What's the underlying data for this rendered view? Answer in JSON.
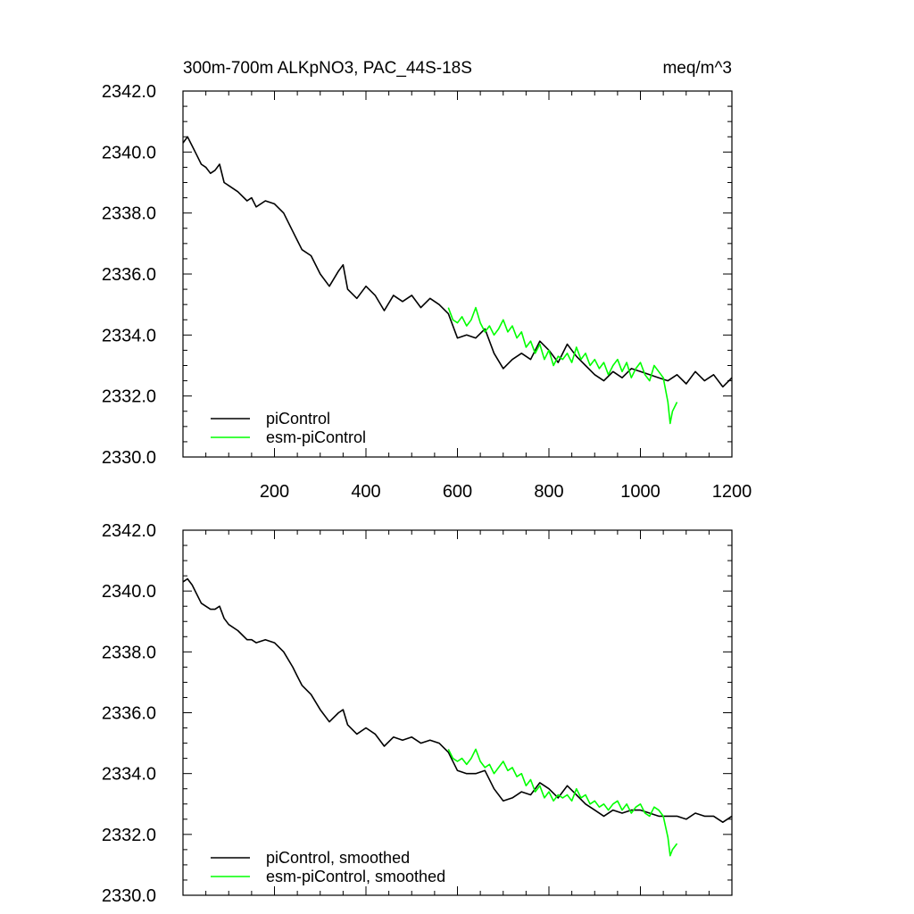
{
  "chart_data": [
    {
      "type": "line",
      "title": "300m-700m ALKpNO3, PAC_44S-18S",
      "units": "meq/m^3",
      "xlim": [
        0,
        1200
      ],
      "ylim": [
        2330,
        2342
      ],
      "x_ticks": [
        200,
        400,
        600,
        800,
        1000,
        1200
      ],
      "x_tick_labels": [
        "200",
        "400",
        "600",
        "800",
        "1000",
        "1200"
      ],
      "y_ticks": [
        2330,
        2332,
        2334,
        2336,
        2338,
        2340,
        2342
      ],
      "y_tick_labels": [
        "2330.0",
        "2332.0",
        "2334.0",
        "2336.0",
        "2338.0",
        "2340.0",
        "2342.0"
      ],
      "legend_position": "bottom-left",
      "series": [
        {
          "name": "piControl",
          "color": "#000000",
          "x": [
            0,
            10,
            20,
            30,
            40,
            50,
            60,
            70,
            80,
            90,
            100,
            120,
            140,
            150,
            160,
            180,
            200,
            220,
            240,
            250,
            260,
            280,
            300,
            320,
            340,
            350,
            360,
            380,
            400,
            420,
            440,
            460,
            480,
            500,
            520,
            540,
            560,
            580,
            600,
            620,
            640,
            660,
            680,
            700,
            720,
            740,
            760,
            780,
            800,
            820,
            840,
            860,
            880,
            900,
            920,
            940,
            960,
            980,
            1000,
            1020,
            1040,
            1060,
            1080,
            1100,
            1120,
            1140,
            1160,
            1180,
            1200
          ],
          "y": [
            2340.3,
            2340.5,
            2340.2,
            2339.9,
            2339.6,
            2339.5,
            2339.3,
            2339.4,
            2339.6,
            2339.0,
            2338.9,
            2338.7,
            2338.4,
            2338.5,
            2338.2,
            2338.4,
            2338.3,
            2338.0,
            2337.4,
            2337.1,
            2336.8,
            2336.6,
            2336.0,
            2335.6,
            2336.1,
            2336.3,
            2335.5,
            2335.2,
            2335.6,
            2335.3,
            2334.8,
            2335.3,
            2335.1,
            2335.3,
            2334.9,
            2335.2,
            2335.0,
            2334.7,
            2333.9,
            2334.0,
            2333.9,
            2334.2,
            2333.4,
            2332.9,
            2333.2,
            2333.4,
            2333.2,
            2333.8,
            2333.5,
            2333.1,
            2333.7,
            2333.3,
            2333.0,
            2332.7,
            2332.5,
            2332.8,
            2332.6,
            2332.9,
            2332.8,
            2332.7,
            2332.6,
            2332.5,
            2332.7,
            2332.4,
            2332.8,
            2332.5,
            2332.7,
            2332.3,
            2332.6
          ]
        },
        {
          "name": "esm-piControl",
          "color": "#00ff00",
          "x": [
            580,
            590,
            600,
            610,
            620,
            630,
            640,
            650,
            660,
            670,
            680,
            690,
            700,
            710,
            720,
            730,
            740,
            750,
            760,
            770,
            780,
            790,
            800,
            810,
            820,
            830,
            840,
            850,
            860,
            870,
            880,
            890,
            900,
            910,
            920,
            930,
            940,
            950,
            960,
            970,
            980,
            990,
            1000,
            1010,
            1020,
            1030,
            1040,
            1050,
            1060,
            1065,
            1070,
            1080
          ],
          "y": [
            2334.9,
            2334.5,
            2334.4,
            2334.6,
            2334.3,
            2334.5,
            2334.9,
            2334.4,
            2334.1,
            2334.3,
            2334.0,
            2334.2,
            2334.5,
            2334.1,
            2334.3,
            2333.9,
            2334.1,
            2333.6,
            2333.8,
            2333.4,
            2333.7,
            2333.2,
            2333.5,
            2333.0,
            2333.3,
            2333.2,
            2333.4,
            2333.1,
            2333.6,
            2333.2,
            2333.4,
            2333.0,
            2333.2,
            2332.9,
            2333.1,
            2332.7,
            2333.0,
            2333.2,
            2332.8,
            2333.1,
            2332.6,
            2332.9,
            2333.1,
            2332.7,
            2332.5,
            2333.0,
            2332.8,
            2332.6,
            2331.8,
            2331.1,
            2331.5,
            2331.8
          ]
        }
      ],
      "legend_entries": [
        "piControl",
        "esm-piControl"
      ]
    },
    {
      "type": "line",
      "title": "",
      "xlim": [
        0,
        1200
      ],
      "ylim": [
        2330,
        2342
      ],
      "x_ticks": [
        200,
        400,
        600,
        800,
        1000,
        1200
      ],
      "x_tick_labels": [],
      "y_ticks": [
        2330,
        2332,
        2334,
        2336,
        2338,
        2340,
        2342
      ],
      "y_tick_labels": [
        "2330.0",
        "2332.0",
        "2334.0",
        "2336.0",
        "2338.0",
        "2340.0",
        "2342.0"
      ],
      "legend_position": "bottom-left",
      "series": [
        {
          "name": "piControl, smoothed",
          "color": "#000000",
          "x": [
            0,
            10,
            20,
            30,
            40,
            50,
            60,
            70,
            80,
            90,
            100,
            120,
            140,
            150,
            160,
            180,
            200,
            220,
            240,
            250,
            260,
            280,
            300,
            320,
            340,
            350,
            360,
            380,
            400,
            420,
            440,
            460,
            480,
            500,
            520,
            540,
            560,
            580,
            600,
            620,
            640,
            660,
            680,
            700,
            720,
            740,
            760,
            780,
            800,
            820,
            840,
            860,
            880,
            900,
            920,
            940,
            960,
            980,
            1000,
            1020,
            1040,
            1060,
            1080,
            1100,
            1120,
            1140,
            1160,
            1180,
            1200
          ],
          "y": [
            2340.3,
            2340.4,
            2340.2,
            2339.9,
            2339.6,
            2339.5,
            2339.4,
            2339.4,
            2339.5,
            2339.1,
            2338.9,
            2338.7,
            2338.4,
            2338.4,
            2338.3,
            2338.4,
            2338.3,
            2338.0,
            2337.5,
            2337.2,
            2336.9,
            2336.6,
            2336.1,
            2335.7,
            2336.0,
            2336.1,
            2335.6,
            2335.3,
            2335.5,
            2335.3,
            2334.9,
            2335.2,
            2335.1,
            2335.2,
            2335.0,
            2335.1,
            2335.0,
            2334.7,
            2334.1,
            2334.0,
            2334.0,
            2334.1,
            2333.5,
            2333.1,
            2333.2,
            2333.4,
            2333.3,
            2333.7,
            2333.5,
            2333.2,
            2333.6,
            2333.3,
            2333.0,
            2332.8,
            2332.6,
            2332.8,
            2332.7,
            2332.8,
            2332.8,
            2332.7,
            2332.6,
            2332.6,
            2332.6,
            2332.5,
            2332.7,
            2332.6,
            2332.6,
            2332.4,
            2332.6
          ]
        },
        {
          "name": "esm-piControl, smoothed",
          "color": "#00ff00",
          "x": [
            580,
            590,
            600,
            610,
            620,
            630,
            640,
            650,
            660,
            670,
            680,
            690,
            700,
            710,
            720,
            730,
            740,
            750,
            760,
            770,
            780,
            790,
            800,
            810,
            820,
            830,
            840,
            850,
            860,
            870,
            880,
            890,
            900,
            910,
            920,
            930,
            940,
            950,
            960,
            970,
            980,
            990,
            1000,
            1010,
            1020,
            1030,
            1040,
            1050,
            1060,
            1065,
            1070,
            1080
          ],
          "y": [
            2334.8,
            2334.5,
            2334.4,
            2334.5,
            2334.3,
            2334.5,
            2334.8,
            2334.4,
            2334.2,
            2334.3,
            2334.0,
            2334.2,
            2334.4,
            2334.1,
            2334.2,
            2333.9,
            2334.0,
            2333.6,
            2333.8,
            2333.4,
            2333.6,
            2333.2,
            2333.4,
            2333.1,
            2333.3,
            2333.2,
            2333.3,
            2333.1,
            2333.5,
            2333.2,
            2333.3,
            2333.0,
            2333.1,
            2332.9,
            2333.0,
            2332.8,
            2333.0,
            2333.1,
            2332.8,
            2333.0,
            2332.7,
            2332.9,
            2333.0,
            2332.7,
            2332.6,
            2332.9,
            2332.8,
            2332.6,
            2331.9,
            2331.3,
            2331.5,
            2331.7
          ]
        }
      ],
      "legend_entries": [
        "piControl, smoothed",
        "esm-piControl, smoothed"
      ]
    }
  ]
}
